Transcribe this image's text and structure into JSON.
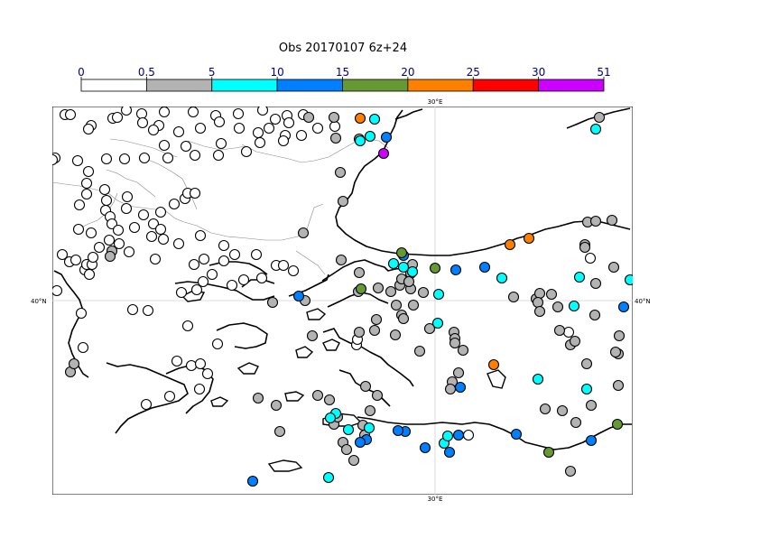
{
  "title": "Obs 20170107 6z+24",
  "colorbar": {
    "ticks": [
      "0",
      "0.5",
      "5",
      "10",
      "15",
      "20",
      "25",
      "30",
      "51"
    ],
    "colors": [
      "#ffffff",
      "#b3b3b3",
      "#00ffff",
      "#007fff",
      "#669933",
      "#ff7f00",
      "#ff0000",
      "#cc00ff"
    ]
  },
  "map": {
    "lon_label_top": "30°E",
    "lon_label_bottom": "30°E",
    "lat_label_left": "40°N",
    "lat_label_right": "40°N",
    "coastline_color": "#000000",
    "border_color": "#888888"
  },
  "stations": {
    "white": [
      [
        14,
        9
      ],
      [
        20,
        9
      ],
      [
        82,
        4
      ],
      [
        99,
        8
      ],
      [
        124,
        6
      ],
      [
        156,
        6
      ],
      [
        181,
        10
      ],
      [
        206,
        8
      ],
      [
        233,
        4
      ],
      [
        260,
        10
      ],
      [
        278,
        9
      ],
      [
        247,
        14
      ],
      [
        185,
        17
      ],
      [
        262,
        18
      ],
      [
        240,
        24
      ],
      [
        294,
        24
      ],
      [
        313,
        22
      ],
      [
        118,
        21
      ],
      [
        43,
        21
      ],
      [
        67,
        13
      ],
      [
        72,
        12
      ],
      [
        40,
        25
      ],
      [
        100,
        18
      ],
      [
        112,
        26
      ],
      [
        140,
        28
      ],
      [
        164,
        24
      ],
      [
        207,
        24
      ],
      [
        228,
        29
      ],
      [
        258,
        32
      ],
      [
        276,
        32
      ],
      [
        124,
        43
      ],
      [
        148,
        44
      ],
      [
        187,
        41
      ],
      [
        230,
        40
      ],
      [
        256,
        38
      ],
      [
        215,
        50
      ],
      [
        184,
        54
      ],
      [
        158,
        54
      ],
      [
        128,
        57
      ],
      [
        102,
        57
      ],
      [
        80,
        58
      ],
      [
        60,
        58
      ],
      [
        28,
        60
      ],
      [
        3,
        57
      ],
      [
        0,
        59
      ],
      [
        40,
        72
      ],
      [
        38,
        85
      ],
      [
        38,
        97
      ],
      [
        30,
        109
      ],
      [
        58,
        92
      ],
      [
        60,
        104
      ],
      [
        59,
        115
      ],
      [
        64,
        122
      ],
      [
        66,
        130
      ],
      [
        83,
        100
      ],
      [
        82,
        113
      ],
      [
        101,
        120
      ],
      [
        120,
        117
      ],
      [
        135,
        108
      ],
      [
        147,
        102
      ],
      [
        150,
        96
      ],
      [
        158,
        96
      ],
      [
        91,
        134
      ],
      [
        29,
        136
      ],
      [
        43,
        140
      ],
      [
        73,
        137
      ],
      [
        52,
        156
      ],
      [
        63,
        148
      ],
      [
        74,
        152
      ],
      [
        85,
        161
      ],
      [
        112,
        130
      ],
      [
        120,
        136
      ],
      [
        110,
        144
      ],
      [
        123,
        147
      ],
      [
        140,
        152
      ],
      [
        164,
        143
      ],
      [
        190,
        154
      ],
      [
        202,
        164
      ],
      [
        226,
        164
      ],
      [
        114,
        169
      ],
      [
        11,
        164
      ],
      [
        19,
        172
      ],
      [
        26,
        170
      ],
      [
        36,
        181
      ],
      [
        41,
        186
      ],
      [
        38,
        175
      ],
      [
        44,
        175
      ],
      [
        45,
        167
      ],
      [
        157,
        175
      ],
      [
        168,
        169
      ],
      [
        190,
        171
      ],
      [
        177,
        186
      ],
      [
        212,
        192
      ],
      [
        232,
        190
      ],
      [
        248,
        176
      ],
      [
        256,
        176
      ],
      [
        267,
        182
      ],
      [
        199,
        198
      ],
      [
        167,
        194
      ],
      [
        143,
        206
      ],
      [
        160,
        203
      ],
      [
        5,
        204
      ],
      [
        89,
        225
      ],
      [
        32,
        229
      ],
      [
        106,
        226
      ],
      [
        34,
        267
      ],
      [
        150,
        243
      ],
      [
        183,
        263
      ],
      [
        138,
        282
      ],
      [
        154,
        287
      ],
      [
        164,
        285
      ],
      [
        172,
        296
      ],
      [
        130,
        321
      ],
      [
        104,
        330
      ],
      [
        163,
        313
      ],
      [
        337,
        264
      ],
      [
        338,
        258
      ],
      [
        461,
        364
      ],
      [
        572,
        250
      ],
      [
        596,
        168
      ]
    ],
    "gray": [
      [
        284,
        12
      ],
      [
        312,
        12
      ],
      [
        314,
        35
      ],
      [
        340,
        36
      ],
      [
        319,
        73
      ],
      [
        322,
        105
      ],
      [
        278,
        140
      ],
      [
        320,
        170
      ],
      [
        340,
        184
      ],
      [
        339,
        205
      ],
      [
        397,
        202
      ],
      [
        400,
        220
      ],
      [
        411,
        206
      ],
      [
        387,
        231
      ],
      [
        340,
        250
      ],
      [
        380,
        253
      ],
      [
        418,
        246
      ],
      [
        445,
        250
      ],
      [
        455,
        270
      ],
      [
        407,
        271
      ],
      [
        511,
        211
      ],
      [
        536,
        213
      ],
      [
        540,
        207
      ],
      [
        538,
        217
      ],
      [
        553,
        208
      ],
      [
        560,
        222
      ],
      [
        562,
        248
      ],
      [
        574,
        264
      ],
      [
        579,
        260
      ],
      [
        601,
        231
      ],
      [
        627,
        274
      ],
      [
        628,
        254
      ],
      [
        443,
        305
      ],
      [
        450,
        295
      ],
      [
        441,
        313
      ],
      [
        385,
        198
      ],
      [
        387,
        191
      ],
      [
        280,
        215
      ],
      [
        359,
        236
      ],
      [
        357,
        248
      ],
      [
        446,
        257
      ],
      [
        446,
        262
      ],
      [
        540,
        227
      ],
      [
        574,
        404
      ],
      [
        606,
        12
      ],
      [
        593,
        128
      ],
      [
        602,
        127
      ],
      [
        590,
        153
      ],
      [
        627,
        309
      ],
      [
        592,
        285
      ],
      [
        565,
        337
      ],
      [
        546,
        335
      ],
      [
        580,
        350
      ],
      [
        597,
        331
      ],
      [
        624,
        272
      ],
      [
        602,
        196
      ],
      [
        622,
        178
      ],
      [
        620,
        126
      ],
      [
        590,
        156
      ],
      [
        20,
        294
      ],
      [
        24,
        285
      ],
      [
        66,
        160
      ],
      [
        64,
        166
      ],
      [
        288,
        254
      ],
      [
        244,
        217
      ],
      [
        228,
        323
      ],
      [
        252,
        360
      ],
      [
        248,
        331
      ],
      [
        312,
        352
      ],
      [
        294,
        320
      ],
      [
        322,
        372
      ],
      [
        326,
        380
      ],
      [
        334,
        392
      ],
      [
        346,
        364
      ],
      [
        344,
        353
      ],
      [
        352,
        337
      ],
      [
        360,
        320
      ],
      [
        399,
        175
      ],
      [
        397,
        185
      ],
      [
        395,
        194
      ],
      [
        361,
        201
      ],
      [
        375,
        205
      ],
      [
        381,
        220
      ],
      [
        389,
        235
      ],
      [
        316,
        344
      ],
      [
        347,
        310
      ],
      [
        307,
        325
      ]
    ],
    "cyan": [
      [
        357,
        14
      ],
      [
        341,
        38
      ],
      [
        352,
        33
      ],
      [
        602,
        25
      ],
      [
        378,
        174
      ],
      [
        389,
        178
      ],
      [
        399,
        183
      ],
      [
        428,
        208
      ],
      [
        427,
        240
      ],
      [
        498,
        190
      ],
      [
        584,
        189
      ],
      [
        640,
        192
      ],
      [
        578,
        221
      ],
      [
        538,
        302
      ],
      [
        592,
        313
      ],
      [
        434,
        373
      ],
      [
        328,
        358
      ],
      [
        306,
        411
      ],
      [
        438,
        365
      ],
      [
        314,
        340
      ],
      [
        351,
        356
      ],
      [
        308,
        345
      ]
    ],
    "blue": [
      [
        370,
        34
      ],
      [
        273,
        210
      ],
      [
        389,
        165
      ],
      [
        447,
        181
      ],
      [
        479,
        178
      ],
      [
        633,
        222
      ],
      [
        452,
        311
      ],
      [
        413,
        378
      ],
      [
        391,
        360
      ],
      [
        348,
        369
      ],
      [
        514,
        363
      ],
      [
        597,
        370
      ],
      [
        222,
        415
      ],
      [
        383,
        359
      ],
      [
        341,
        372
      ],
      [
        440,
        383
      ],
      [
        450,
        364
      ]
    ],
    "green": [
      [
        387,
        162
      ],
      [
        342,
        202
      ],
      [
        424,
        179
      ],
      [
        626,
        352
      ],
      [
        550,
        383
      ]
    ],
    "orange": [
      [
        341,
        13
      ],
      [
        507,
        153
      ],
      [
        528,
        146
      ],
      [
        489,
        286
      ]
    ],
    "purple": [
      [
        367,
        52
      ]
    ]
  },
  "coastlines": [
    "M 388 4 L 382 12 L 379 22 L 375 30 L 371 40 L 366 50 L 357 58 L 346 66 L 340 74 L 335 84 L 332 96 L 326 104 L 318 112 L 314 122 L 316 132 L 325 141 L 335 148 L 348 155 L 365 160 L 384 163 L 403 164 L 420 165 L 440 165 L 460 162 L 480 158 L 500 152 L 515 146 L 530 142 L 546 136 L 560 133 L 578 128 L 592 127 L 608 128 L 624 132 L 640 136",
    "M 570 24 L 580 20 L 594 14 L 608 10 L 622 6 L 640 2",
    "M 380 14 L 392 10 L 400 6 L 410 3",
    "M 299 193 L 310 186 L 322 178 L 335 172 L 346 170 L 358 175 L 368 178 L 372 182 L 380 180 L 392 179 L 400 178",
    "M 262 210 L 280 204 L 292 198 L 304 192 L 306 186",
    "M 305 222 L 318 216 L 330 210 L 342 206 L 352 208 L 362 214 L 372 218",
    "M 300 250 L 312 246 L 318 256 L 330 262 L 342 266 L 352 272 L 364 278 L 372 286 L 386 296 L 396 304 L 400 310",
    "M 318 292 L 330 296 L 336 306 L 346 312 L 360 318 L 366 324 L 374 332",
    "M 338 344 L 352 346 L 372 350 L 392 352 L 412 352 L 432 350 L 454 352 L 468 350 L 484 352 L 500 358 L 512 364 L 524 372 L 540 376 L 556 380 L 572 378 L 588 372 L 606 362 L 618 356 L 630 352 L 642 352",
    "M 2 182 L 10 186 L 16 196 L 24 206 L 30 214 L 34 226 L 28 236 L 22 248 L 18 262 L 22 274 L 28 286 L 34 296 L 40 300",
    "M 60 284 L 72 288 L 86 286 L 104 290 L 118 296 L 132 302 L 146 308 L 150 318 L 140 326 L 126 330 L 110 334 L 96 340 L 84 346 L 76 354 L 70 362",
    "M 126 296 L 140 290 L 156 286 L 170 292 L 178 302 L 174 316 L 166 326 L 156 332 L 148 340",
    "M 182 248 L 196 242 L 212 240 L 226 244 L 238 252 L 236 262 L 226 266 L 214 268 L 202 266",
    "M 136 196 L 150 194 L 168 196 L 188 200 L 204 204 L 214 210 L 222 214 L 234 214 L 246 210",
    "M 174 176 L 190 172 L 204 172 L 218 174 L 230 180 L 238 186",
    "M 210 200 L 220 192 L 234 192 L 246 196"
  ],
  "islands": [
    "M 300 346 L 316 340 L 334 342 L 342 350 L 330 354 L 314 354 L 300 352 Z",
    "M 240 396 L 256 392 L 270 394 L 276 400 L 262 404 L 246 404 Z",
    "M 144 210 L 156 204 L 168 206 L 164 214 L 150 216 Z",
    "M 206 290 L 218 284 L 228 288 L 224 296 L 212 296 Z",
    "M 258 318 L 270 316 L 278 320 L 272 326 L 260 326 Z",
    "M 482 296 L 494 292 L 502 300 L 498 312 L 488 310 Z",
    "M 176 326 L 186 322 L 194 326 L 188 332 L 178 332 Z",
    "M 282 228 L 294 224 L 302 230 L 296 236 L 284 236 Z",
    "M 300 262 L 310 258 L 318 262 L 314 270 L 304 270 Z",
    "M 270 270 L 280 266 L 288 272 L 282 278 L 272 278 Z"
  ],
  "borders": [
    "M 0 84 L 14 86 L 30 88 L 48 92 L 62 96 L 72 104 L 84 110 L 98 112 L 114 114 L 126 116 L 136 124 L 146 128 L 160 132 L 176 140 L 194 144 L 216 146 L 236 148 L 254 148 L 272 144 L 282 136 L 286 124 L 290 112 L 300 108",
    "M 28 136 L 40 130 L 50 126 L 60 118 L 68 106 L 72 96",
    "M 60 70 L 72 74 L 82 80 L 94 84 L 104 92 L 114 100",
    "M 104 58 L 118 64 L 132 72 L 144 80 L 150 92 L 156 104 L 160 114",
    "M 210 42 L 226 50 L 244 54 L 262 58 L 276 62 L 290 60 L 306 56 L 320 48 L 334 40 L 348 36 L 362 38 L 372 46",
    "M 150 38 L 168 44 L 186 48 L 202 46 L 214 44",
    "M 64 36 L 80 38 L 96 42 L 112 46 L 126 52 L 138 56",
    "M 270 160 L 282 168 L 294 176 L 302 186"
  ]
}
